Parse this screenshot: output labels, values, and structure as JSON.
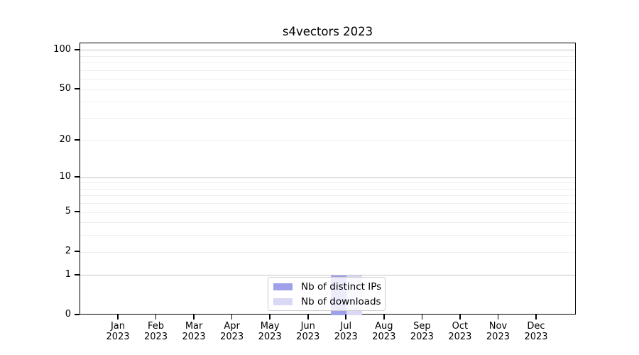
{
  "chart_data": {
    "type": "bar",
    "title": "s4vectors 2023",
    "categories": [
      "Jan",
      "Feb",
      "Mar",
      "Apr",
      "May",
      "Jun",
      "Jul",
      "Aug",
      "Sep",
      "Oct",
      "Nov",
      "Dec"
    ],
    "year": "2023",
    "series": [
      {
        "name": "Nb of distinct IPs",
        "color": "#a0a0e8",
        "values": [
          0,
          0,
          0,
          0,
          0,
          0,
          1,
          0,
          0,
          0,
          0,
          0
        ]
      },
      {
        "name": "Nb of downloads",
        "color": "#d9d9f6",
        "values": [
          0,
          0,
          0,
          0,
          0,
          0,
          1,
          0,
          0,
          0,
          0,
          0
        ]
      }
    ],
    "yscale": "log1p",
    "yticks": [
      0,
      1,
      2,
      5,
      10,
      20,
      50,
      100
    ],
    "ymax": 113,
    "grid_major": [
      1,
      10,
      100
    ],
    "grid_minor": [
      2,
      3,
      4,
      5,
      6,
      7,
      8,
      9,
      20,
      30,
      40,
      50,
      60,
      70,
      80,
      90
    ],
    "legend_position": "bottom-center",
    "colors": {
      "axis": "#000000",
      "grid_major": "#c3c3c3",
      "grid_minor": "#efefef",
      "legend_border": "#cccccc"
    }
  }
}
